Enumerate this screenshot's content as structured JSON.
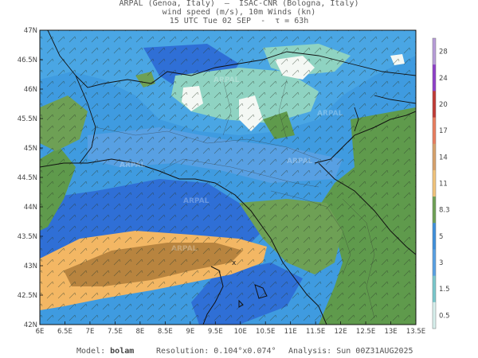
{
  "header": {
    "line1": "ARPAL (Genoa, Italy)  —  ISAC-CNR (Bologna, Italy)",
    "line2": "wind speed (m/s), 10m Winds (kn)",
    "line3": "15 UTC Tue 02 SEP  -  τ = 63h"
  },
  "map": {
    "lat_labels": [
      "47N",
      "46.5N",
      "46N",
      "45.5N",
      "45N",
      "44.5N",
      "44N",
      "43.5N",
      "43N",
      "42.5N",
      "42N"
    ],
    "lon_labels": [
      "6E",
      "6.5E",
      "7E",
      "7.5E",
      "8E",
      "8.5E",
      "9E",
      "9.5E",
      "10E",
      "10.5E",
      "11E",
      "11.5E",
      "12E",
      "12.5E",
      "13E",
      "13.5E"
    ],
    "watermark": "ARPAL",
    "colors": {
      "sea_low": "#2f6fd6",
      "sea_mid": "#3f9be0",
      "land_green": "#5f9a4c",
      "calm_teal": "#8fd3c2",
      "orange": "#f3b764",
      "brown": "#b8843f",
      "white": "#f4f8f4"
    }
  },
  "legend": {
    "ticks": [
      "28",
      "24",
      "20",
      "17",
      "14",
      "11",
      "8.3",
      "5",
      "3",
      "1.5",
      "0.5"
    ],
    "colors": [
      "#b79cd8",
      "#8e3fc8",
      "#c03a35",
      "#e97d5e",
      "#d7a16a",
      "#f1c37a",
      "#6ea055",
      "#3e8fdb",
      "#58a0e3",
      "#79c7cc",
      "#d7efec"
    ]
  },
  "footer": {
    "model_label": "Model:",
    "model_value": "bolam",
    "resolution_label": "Resolution:",
    "resolution_value": "0.104°x0.074°",
    "analysis_label": "Analysis:",
    "analysis_value": "Sun 00Z31AUG2025"
  }
}
